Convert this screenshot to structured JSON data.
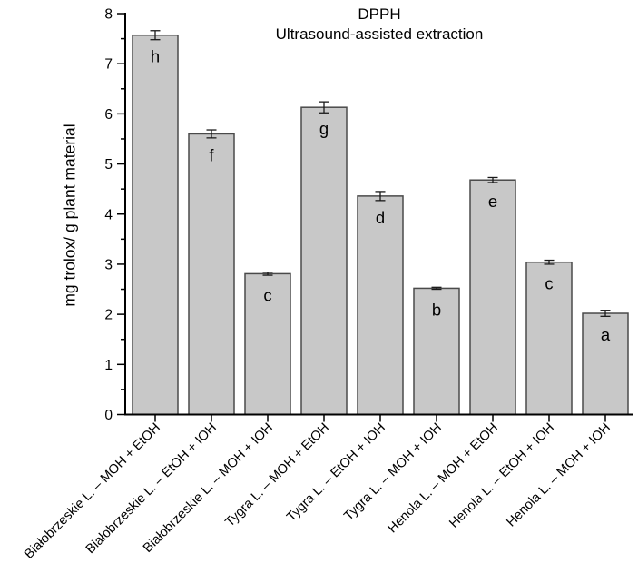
{
  "title": {
    "line1": "DPPH",
    "line2": "Ultrasound-assisted extraction"
  },
  "chart_data": {
    "type": "bar",
    "title": "DPPH",
    "subtitle": "Ultrasound-assisted extraction",
    "xlabel": "",
    "ylabel": "mg trolox/ g plant material",
    "ylim": [
      0,
      8
    ],
    "ytick_step": 1,
    "yminor_step": 0.5,
    "ytick_labels": [
      "0",
      "1",
      "2",
      "3",
      "4",
      "5",
      "6",
      "7",
      "8"
    ],
    "grid": false,
    "legend": "none",
    "categories": [
      "Białobrzeskie L. – MOH + EtOH",
      "Białobrzeskie L. – EtOH + IOH",
      "Białobrzeskie L. – MOH + IOH",
      "Tygra L. – MOH + EtOH",
      "Tygra L. – EtOH + IOH",
      "Tygra L. – MOH + IOH",
      "Henola L. – MOH + EtOH",
      "Henola L. – EtOH + IOH",
      "Henola L. – MOH + IOH"
    ],
    "values": [
      7.57,
      5.6,
      2.81,
      6.13,
      4.36,
      2.52,
      4.68,
      3.04,
      2.02
    ],
    "errors": [
      0.09,
      0.08,
      0.03,
      0.11,
      0.09,
      0.02,
      0.05,
      0.04,
      0.06
    ],
    "bar_letters": [
      "h",
      "f",
      "c",
      "g",
      "d",
      "b",
      "e",
      "c",
      "a"
    ],
    "colors": {
      "bar_fill": "#c8c8c8",
      "bar_border": "#4a4a4a",
      "axis": "#000000",
      "error_bar": "#1a1a1a",
      "text": "#000000",
      "background": "#ffffff"
    }
  }
}
